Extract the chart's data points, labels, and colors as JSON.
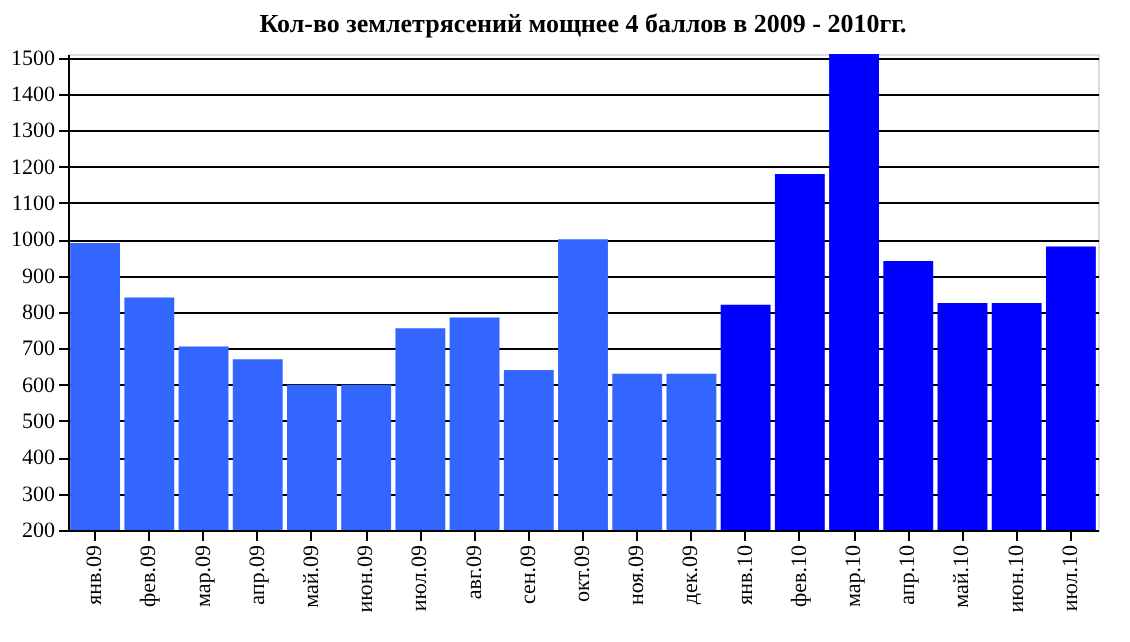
{
  "chart_data": {
    "type": "bar",
    "title": "Кол-во землетрясений мощнее 4 баллов в 2009 - 2010гг.",
    "categories": [
      "янв.09",
      "фев.09",
      "мар.09",
      "апр.09",
      "май.09",
      "июн.09",
      "июл.09",
      "авг.09",
      "сен.09",
      "окт.09",
      "ноя.09",
      "дек.09",
      "янв.10",
      "фев.10",
      "мар.10",
      "апр.10",
      "май.10",
      "июн.10",
      "июл.10"
    ],
    "values": [
      990,
      840,
      705,
      670,
      600,
      600,
      755,
      785,
      640,
      1000,
      630,
      630,
      820,
      1180,
      1510,
      940,
      825,
      825,
      980
    ],
    "colors": [
      "#3366ff",
      "#3366ff",
      "#3366ff",
      "#3366ff",
      "#3366ff",
      "#3366ff",
      "#3366ff",
      "#3366ff",
      "#3366ff",
      "#3366ff",
      "#3366ff",
      "#3366ff",
      "#0000ff",
      "#0000ff",
      "#0000ff",
      "#0000ff",
      "#0000ff",
      "#0000ff",
      "#0000ff"
    ],
    "ylim": [
      200,
      1510
    ],
    "yticks": [
      200,
      300,
      400,
      500,
      600,
      700,
      800,
      900,
      1000,
      1100,
      1200,
      1300,
      1400,
      1500
    ],
    "grid": "y"
  }
}
